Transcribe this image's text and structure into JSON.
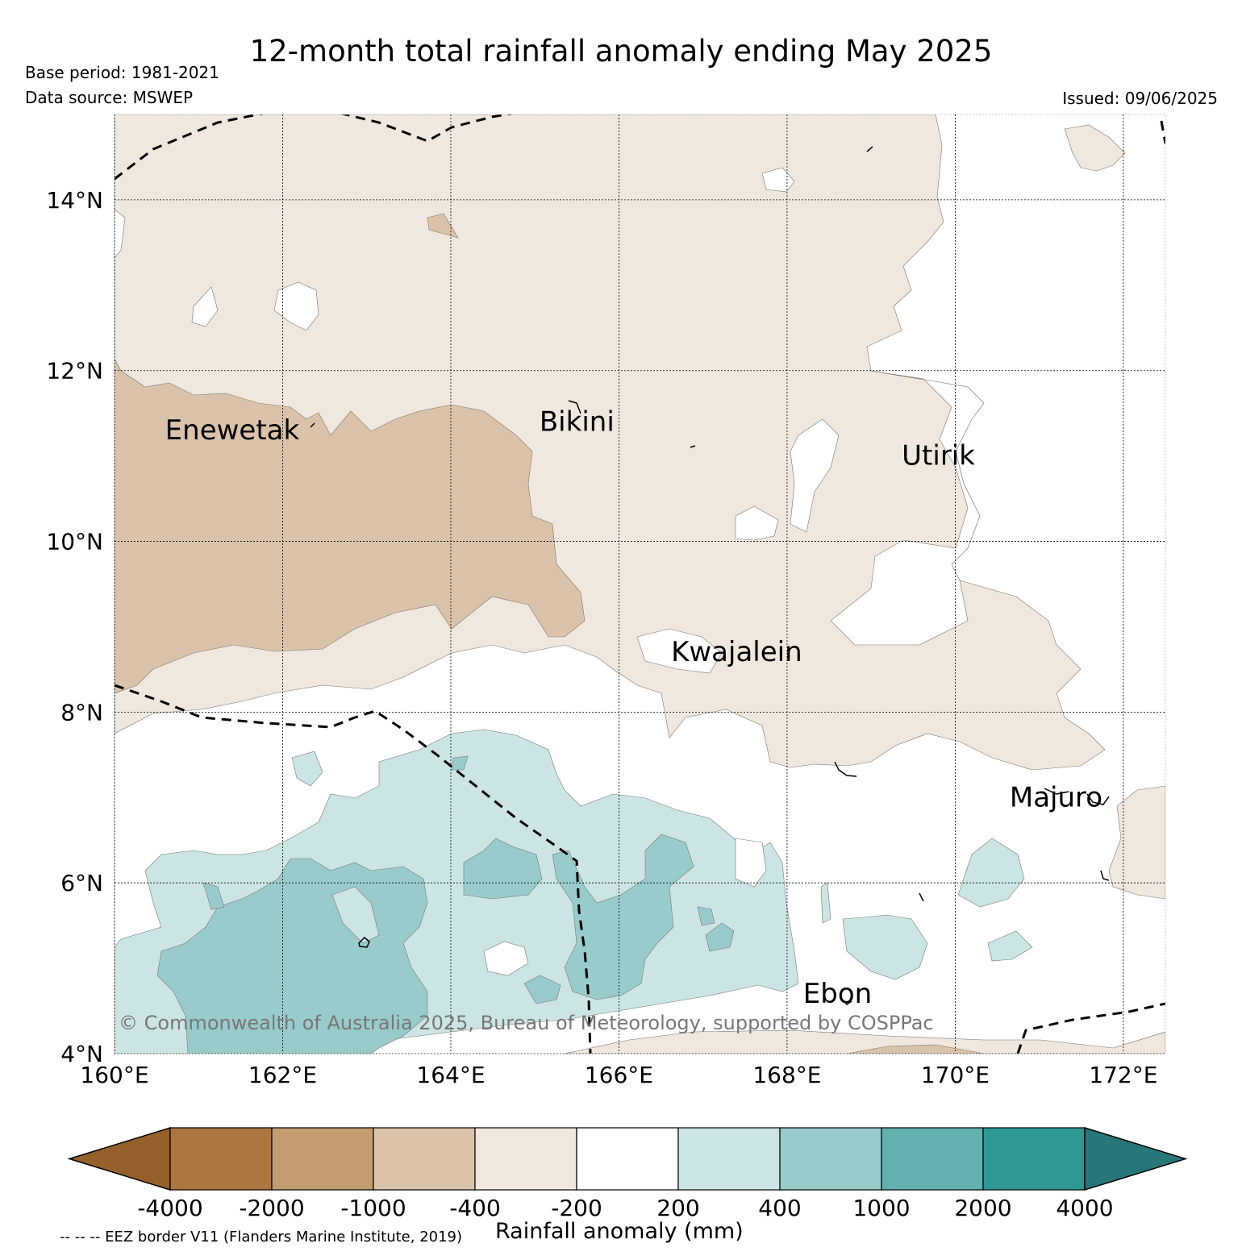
{
  "header": {
    "title": "12-month total rainfall anomaly ending May 2025",
    "base_period": "Base period: 1981-2021",
    "data_source": "Data source: MSWEP",
    "issued": "Issued: 09/06/2025"
  },
  "map": {
    "lon_range": [
      160,
      172.5
    ],
    "lat_range": [
      4,
      15
    ],
    "lon_ticks": [
      "160°E",
      "162°E",
      "164°E",
      "166°E",
      "168°E",
      "170°E",
      "172°E"
    ],
    "lat_ticks": [
      "4°N",
      "6°N",
      "8°N",
      "10°N",
      "12°N",
      "14°N"
    ],
    "places": [
      {
        "name": "Enewetak",
        "lon": 161.4,
        "lat": 11.3
      },
      {
        "name": "Bikini",
        "lon": 165.5,
        "lat": 11.4
      },
      {
        "name": "Utirik",
        "lon": 169.8,
        "lat": 11.0
      },
      {
        "name": "Kwajalein",
        "lon": 167.4,
        "lat": 8.7
      },
      {
        "name": "Majuro",
        "lon": 171.2,
        "lat": 7.0
      },
      {
        "name": "Ebon",
        "lon": 168.6,
        "lat": 4.7
      }
    ],
    "copyright": "© Commonwealth of Australia 2025, Bureau of Meteorology, supported by COSPPac"
  },
  "colorbar": {
    "label": "Rainfall anomaly (mm)",
    "ticks": [
      "-4000",
      "-2000",
      "-1000",
      "-400",
      "-200",
      "200",
      "400",
      "1000",
      "2000",
      "4000"
    ],
    "colors": [
      "#95602b",
      "#ad7640",
      "#c39c72",
      "#dac3aa",
      "#f0e7de",
      "#ffffff",
      "#cce5e4",
      "#99cbcb",
      "#62b1ae",
      "#2f9893",
      "#27777a"
    ]
  },
  "footnote": "-- -- -- EEZ border V11 (Flanders Marine Institute, 2019)"
}
